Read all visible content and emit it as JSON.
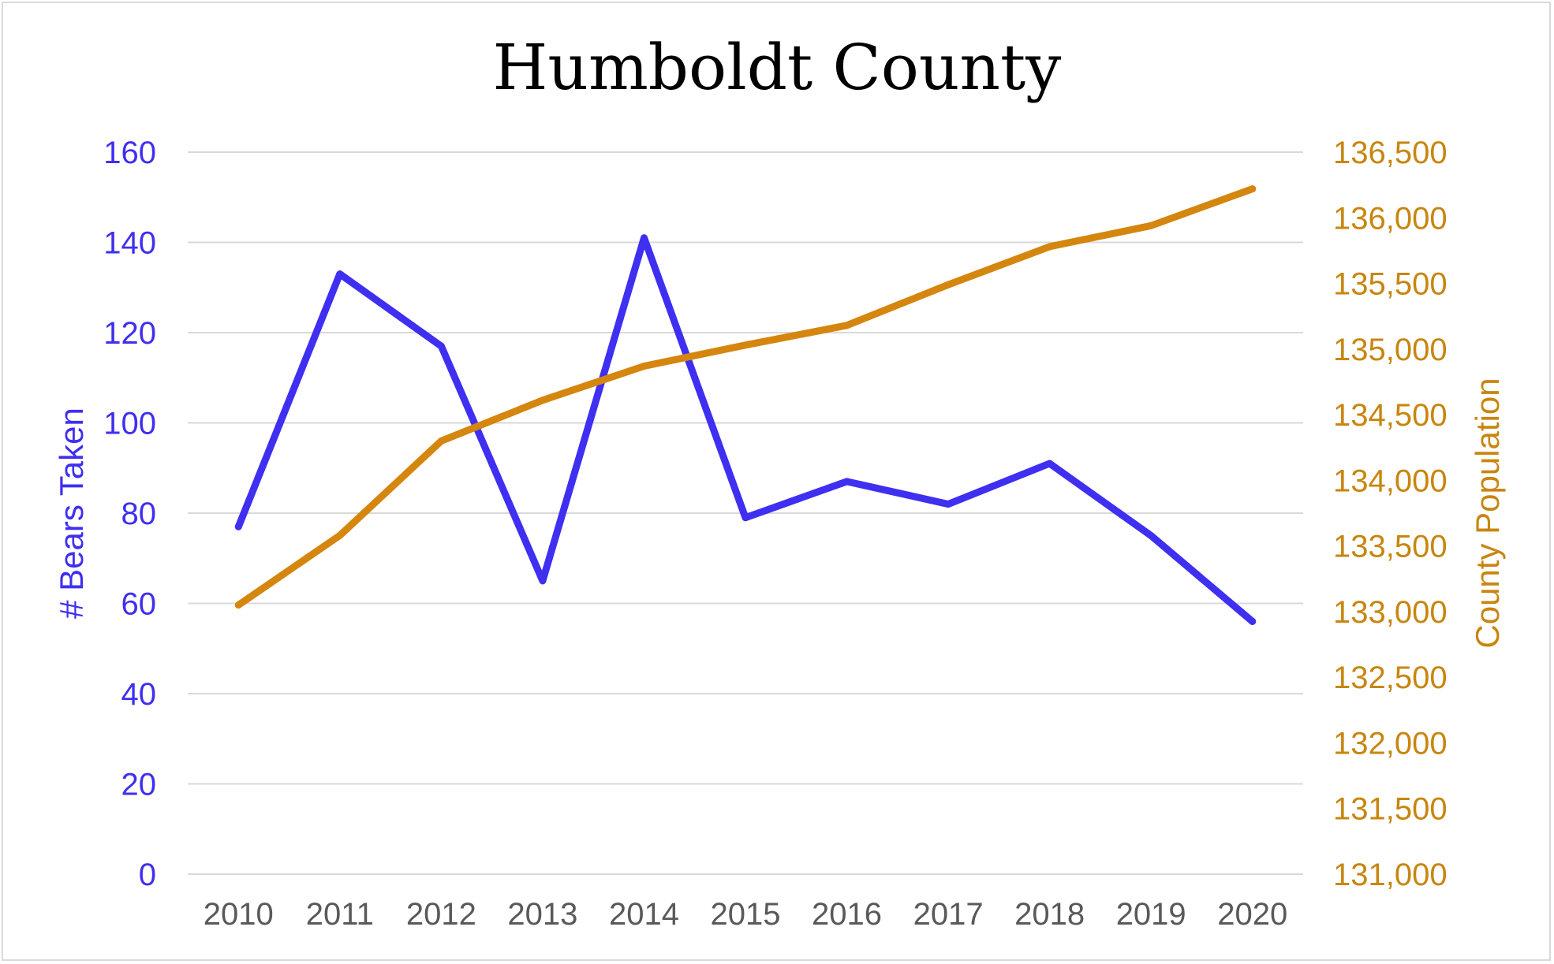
{
  "chart_data": {
    "type": "line",
    "title": "Humboldt County",
    "categories": [
      "2010",
      "2011",
      "2012",
      "2013",
      "2014",
      "2015",
      "2016",
      "2017",
      "2018",
      "2019",
      "2020"
    ],
    "series": [
      {
        "name": "# Bears Taken",
        "axis": "left",
        "color": "#3f2ff0",
        "values": [
          77,
          133,
          117,
          65,
          141,
          79,
          87,
          82,
          91,
          75,
          56
        ]
      },
      {
        "name": "County Population",
        "axis": "right",
        "color": "#d4860f",
        "values": [
          133050,
          133580,
          134300,
          134610,
          134870,
          135030,
          135180,
          135490,
          135780,
          135940,
          136220
        ]
      }
    ],
    "ylabel": "# Bears Taken",
    "ylabel_right": "County Population",
    "ylim": [
      0,
      160
    ],
    "ylim_right": [
      131000,
      136500
    ],
    "yticks": [
      "0",
      "20",
      "40",
      "60",
      "80",
      "100",
      "120",
      "140",
      "160"
    ],
    "yticks_right": [
      "131,000",
      "131,500",
      "132,000",
      "132,500",
      "133,000",
      "133,500",
      "134,000",
      "134,500",
      "135,000",
      "135,500",
      "136,000",
      "136,500"
    ],
    "left_axis_color": "#3f2ff0",
    "right_axis_color": "#c8860f",
    "grid": true,
    "legend": "none"
  }
}
